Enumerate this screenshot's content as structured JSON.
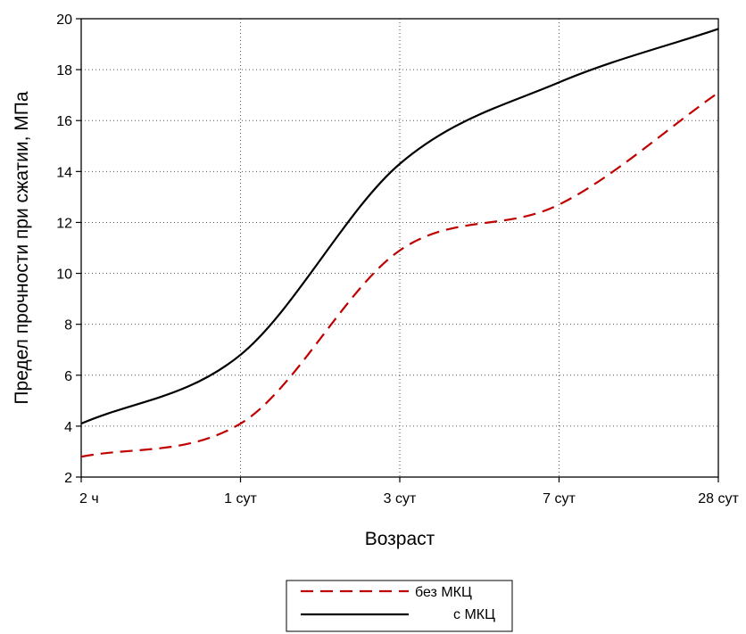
{
  "chart_data": {
    "type": "line",
    "title": "",
    "xlabel": "Возраст",
    "ylabel": "Предел прочности при сжатии, МПа",
    "categories": [
      "2 ч",
      "1 сут",
      "3 сут",
      "7 сут",
      "28 сут"
    ],
    "ylim": [
      2,
      20
    ],
    "yticks": [
      2,
      4,
      6,
      8,
      10,
      12,
      14,
      16,
      18,
      20
    ],
    "grid": "dotted",
    "legend_position": "bottom-center",
    "series": [
      {
        "name": "без МКЦ",
        "color": "#c00000",
        "style": "dashed",
        "values": [
          2.8,
          4.1,
          10.9,
          12.7,
          17.1
        ]
      },
      {
        "name": "с МКЦ",
        "color": "#000000",
        "style": "solid",
        "values": [
          4.1,
          6.8,
          14.3,
          17.5,
          19.6
        ]
      }
    ]
  }
}
